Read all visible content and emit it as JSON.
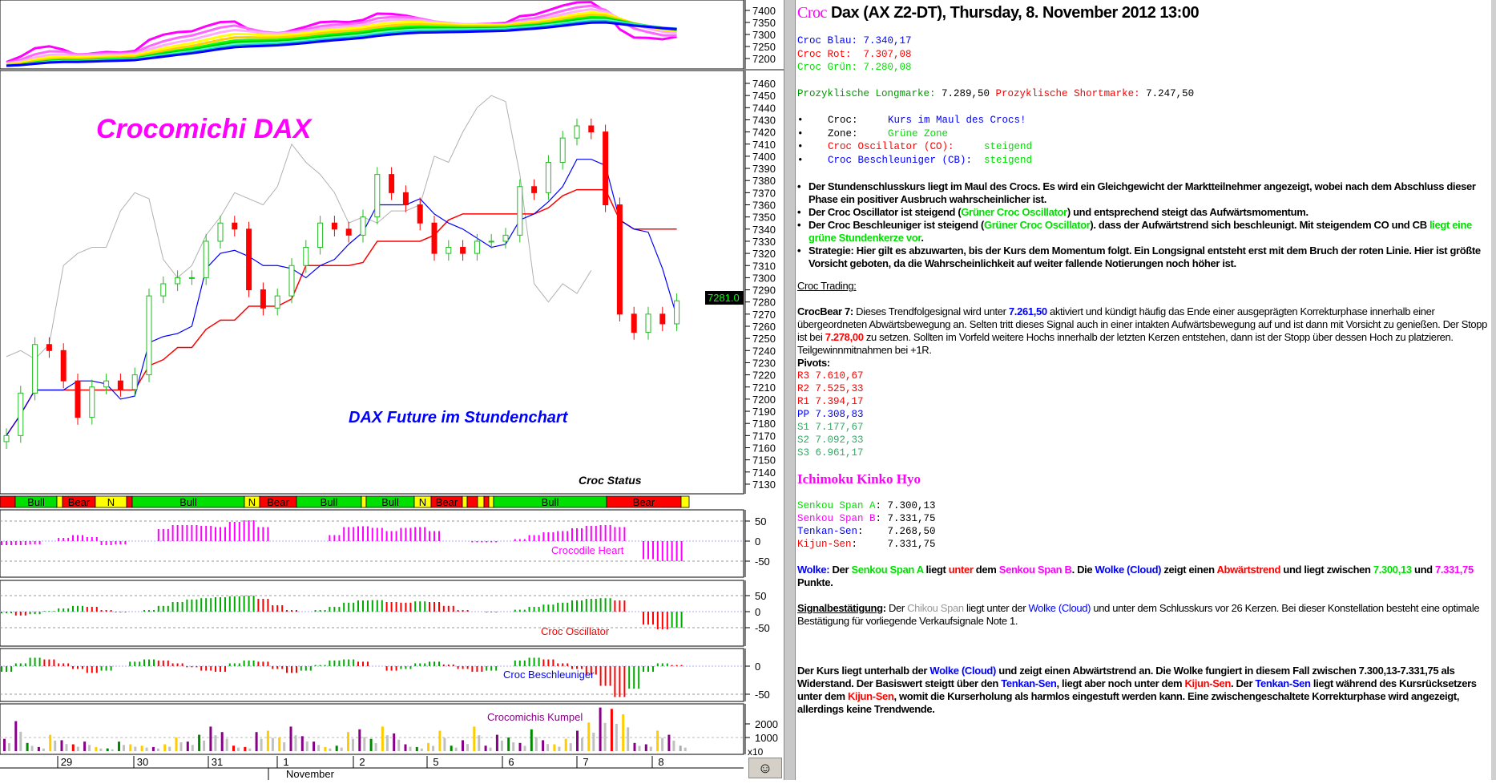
{
  "chart_data": {
    "type": "candlestick",
    "instrument": "DAX Future",
    "timeframe": "hourly",
    "annotations": [
      "Crocomichi DAX",
      "DAX Future im Stundenchart",
      "Croc Status"
    ],
    "last_price_tag": "7281.0",
    "price_axis": {
      "ticks": [
        7460,
        7450,
        7440,
        7430,
        7420,
        7410,
        7400,
        7390,
        7380,
        7370,
        7360,
        7350,
        7340,
        7330,
        7320,
        7310,
        7300,
        7290,
        7280,
        7270,
        7260,
        7250,
        7240,
        7230,
        7220,
        7210,
        7200,
        7190,
        7180,
        7170,
        7160,
        7150,
        7140,
        7130
      ],
      "range": [
        7125,
        7470
      ]
    },
    "ribbon_axis": {
      "ticks": [
        7400,
        7350,
        7300,
        7250,
        7200
      ],
      "range": [
        7190,
        7410
      ]
    },
    "closes": [
      7170,
      7205,
      7245,
      7240,
      7215,
      7185,
      7210,
      7215,
      7208,
      7220,
      7285,
      7295,
      7300,
      7300,
      7330,
      7345,
      7340,
      7290,
      7275,
      7285,
      7310,
      7325,
      7345,
      7340,
      7335,
      7350,
      7385,
      7370,
      7360,
      7345,
      7320,
      7325,
      7320,
      7330,
      7330,
      7335,
      7375,
      7370,
      7395,
      7415,
      7425,
      7420,
      7360,
      7270,
      7255,
      7270,
      7262,
      7281
    ],
    "status_bar": [
      {
        "label": "",
        "state": "bear"
      },
      {
        "label": "Bull",
        "state": "bull"
      },
      {
        "label": "",
        "state": "neutral"
      },
      {
        "label": "Bear",
        "state": "bear"
      },
      {
        "label": "N",
        "state": "neutral"
      },
      {
        "label": "",
        "state": "bear"
      },
      {
        "label": "Bull",
        "state": "bull"
      },
      {
        "label": "N",
        "state": "neutral"
      },
      {
        "label": "Bear",
        "state": "bear"
      },
      {
        "label": "Bull",
        "state": "bull"
      },
      {
        "label": "",
        "state": "neutral"
      },
      {
        "label": "Bull",
        "state": "bull"
      },
      {
        "label": "N",
        "state": "neutral"
      },
      {
        "label": "Bear",
        "state": "bear"
      },
      {
        "label": "",
        "state": "neutral"
      },
      {
        "label": "",
        "state": "bear"
      },
      {
        "label": "",
        "state": "neutral"
      },
      {
        "label": "",
        "state": "bear"
      },
      {
        "label": "",
        "state": "neutral"
      },
      {
        "label": "Bull",
        "state": "bull"
      },
      {
        "label": "Bear",
        "state": "bear"
      },
      {
        "label": "",
        "state": "neutral"
      }
    ],
    "crocodile_heart": {
      "label": "Crocodile Heart",
      "ticks": [
        50,
        0,
        -50
      ],
      "values": [
        -10,
        -10,
        -8,
        0,
        8,
        15,
        10,
        -10,
        -8,
        0,
        0,
        30,
        40,
        40,
        38,
        35,
        48,
        52,
        35,
        0,
        0,
        0,
        0,
        15,
        35,
        37,
        33,
        25,
        33,
        35,
        25,
        0,
        0,
        -3,
        -3,
        0,
        5,
        15,
        22,
        25,
        32,
        38,
        40,
        35,
        0,
        -45,
        -50,
        -50
      ]
    },
    "croc_oscillator": {
      "label": "Croc Oscillator",
      "ticks": [
        50,
        0,
        -50
      ],
      "values": [
        -5,
        -12,
        -8,
        2,
        10,
        18,
        15,
        5,
        -2,
        0,
        5,
        18,
        30,
        38,
        42,
        45,
        48,
        50,
        40,
        20,
        5,
        0,
        5,
        15,
        28,
        35,
        36,
        30,
        28,
        32,
        30,
        18,
        5,
        0,
        -2,
        0,
        6,
        15,
        22,
        28,
        35,
        40,
        42,
        35,
        0,
        -40,
        -55,
        -50
      ]
    },
    "croc_beschleuniger": {
      "label": "Croc Beschleuniger",
      "ticks": [
        0,
        -50
      ],
      "values": [
        -10,
        5,
        15,
        12,
        5,
        -5,
        -12,
        -8,
        0,
        8,
        12,
        10,
        5,
        -2,
        -8,
        -10,
        5,
        10,
        8,
        -5,
        -12,
        -8,
        2,
        10,
        12,
        8,
        0,
        -8,
        -5,
        5,
        8,
        3,
        -5,
        -10,
        -8,
        0,
        10,
        15,
        12,
        5,
        -5,
        -15,
        -35,
        -55,
        -40,
        -10,
        5,
        2
      ]
    },
    "kumpel": {
      "label": "Crocomichis Kumpel",
      "ticks": [
        2000,
        1000
      ],
      "multiplier": "x10",
      "values": [
        900,
        2200,
        600,
        300,
        1200,
        800,
        500,
        700,
        300,
        200,
        700,
        500,
        400,
        300,
        500,
        1000,
        700,
        1200,
        1800,
        1400,
        400,
        300,
        1400,
        1500,
        1000,
        1800,
        1100,
        700,
        300,
        400,
        1400,
        1600,
        900,
        1800,
        1300,
        500,
        300,
        600,
        1500,
        400,
        800,
        1800,
        400,
        1200,
        1000,
        600,
        1600,
        800,
        500,
        900,
        1500,
        2100,
        3200,
        3100,
        2700,
        600,
        500,
        1500,
        1200,
        400
      ],
      "colors": "ppgpyprpyggyypyypgpprrpyypppygypgyppgyygpyppgpgpyypypryppyp"
    },
    "x_axis": {
      "labels": [
        "29",
        "30",
        "31",
        "1",
        "2",
        "5",
        "6",
        "7",
        "8"
      ],
      "month": "November"
    }
  },
  "colors": {
    "bull": "#00e000",
    "bear": "#ff0000",
    "neutral": "#ffff00",
    "heart": "#ff00ff",
    "tenkan": "#0000ff",
    "kijun": "#ff0000",
    "chikou": "#b0b0b0",
    "price_tag_bg": "#000000",
    "price_tag_fg": "#00ff00"
  },
  "icons": {
    "smiley": "smiley-face-icon"
  },
  "panel": {
    "title_croc": "Croc",
    "title": " Dax (AX Z2-DT), Thursday, 8. November 2012 13:00",
    "croc_lines": [
      [
        {
          "t": "Croc Blau: 7.340,17",
          "c": "#0000ff"
        }
      ],
      [
        {
          "t": "Croc Rot:  7.307,08",
          "c": "#ff0000"
        }
      ],
      [
        {
          "t": "Croc Grün: 7.280,08",
          "c": "#00e000"
        }
      ]
    ],
    "prozyklisch": [
      {
        "t": "Prozyklische Longmarke: ",
        "c": "#009900"
      },
      {
        "t": "7.289,50 ",
        "c": "#000"
      },
      {
        "t": "Prozyklische Shortmarke: ",
        "c": "#ff0000"
      },
      {
        "t": "7.247,50",
        "c": "#000"
      }
    ],
    "status_items": [
      [
        {
          "t": "Croc:     ",
          "c": "#000"
        },
        {
          "t": "Kurs im Maul des Crocs!",
          "c": "#0000ff"
        }
      ],
      [
        {
          "t": "Zone:     ",
          "c": "#000"
        },
        {
          "t": "Grüne Zone",
          "c": "#00e000"
        }
      ],
      [
        {
          "t": "Croc Oscillator (CO):     ",
          "c": "#ff0000"
        },
        {
          "t": "steigend",
          "c": "#00e000"
        }
      ],
      [
        {
          "t": "Croc Beschleuniger (CB):  ",
          "c": "#0000ff"
        },
        {
          "t": "steigend",
          "c": "#00e000"
        }
      ]
    ],
    "bullets": [
      [
        {
          "t": "Der Stundenschlusskurs liegt im Maul des Crocs. Es wird ein Gleichgewicht der Marktteilnehmer angezeigt, wobei nach dem Abschluss dieser Phase ein positiver Ausbruch wahrscheinlicher ist.",
          "c": "#000"
        }
      ],
      [
        {
          "t": "Der Croc Oscillator ist steigend (",
          "c": "#000"
        },
        {
          "t": "Grüner Croc Oscillator",
          "c": "#00e000"
        },
        {
          "t": ") und entsprechend steigt das Aufwärtsmomentum.",
          "c": "#000"
        }
      ],
      [
        {
          "t": "Der Croc Beschleuniger ist steigend (",
          "c": "#000"
        },
        {
          "t": "Grüner Croc Oscillator",
          "c": "#00e000"
        },
        {
          "t": "). dass der Aufwärtstrend sich beschleunigt. Mit steigendem CO und CB ",
          "c": "#000"
        },
        {
          "t": "liegt eine grüne Stundenkerze vor",
          "c": "#00e000"
        },
        {
          "t": ".",
          "c": "#000"
        }
      ],
      [
        {
          "t": "Strategie: Hier gilt es abzuwarten, bis der Kurs dem Momentum folgt. Ein Longsignal entsteht erst mit dem Bruch der roten Linie. Hier ist größte Vorsicht geboten, da die Wahrscheinlichkeit auf weiter fallende Notierungen noch höher ist.",
          "c": "#000"
        }
      ]
    ],
    "croc_trading": "Croc Trading",
    "crocbear": [
      {
        "t": "CrocBear 7:",
        "c": "#000",
        "b": 1
      },
      {
        "t": " Dieses Trendfolgesignal wird unter ",
        "c": "#000"
      },
      {
        "t": "7.261,50",
        "c": "#0000ff",
        "b": 1
      },
      {
        "t": " aktiviert und kündigt häufig das Ende einer ausgeprägten Korrekturphase innerhalb einer übergeordneten Abwärtsbewegung an. Selten tritt dieses Signal auch in einer intakten Aufwärtsbewegung auf und ist dann mit Vorsicht zu genießen. Der Stopp ist bei ",
        "c": "#000"
      },
      {
        "t": "7.278,00",
        "c": "#ff0000",
        "b": 1
      },
      {
        "t": " zu setzen. Sollten im Vorfeld weitere Hochs innerhalb der letzten Kerzen entstehen, dann ist der Stopp über dessen Hoch zu platzieren. Teilgewinnmitnahmen bei +1R.",
        "c": "#000"
      }
    ],
    "pivots_label": "Pivots:",
    "pivots": [
      {
        "t": "R3 7.610,67",
        "c": "#ff0000"
      },
      {
        "t": "R2 7.525,33",
        "c": "#ff0000"
      },
      {
        "t": "R1 7.394,17",
        "c": "#ff0000"
      },
      {
        "t": "PP 7.308,83",
        "c": "#0000ff"
      },
      {
        "t": "S1 7.177,67",
        "c": "#33aa66"
      },
      {
        "t": "S2 7.092,33",
        "c": "#33aa66"
      },
      {
        "t": "S3 6.961,17",
        "c": "#33aa66"
      }
    ],
    "ichimoku_title": "Ichimoku Kinko Hyo",
    "ichimoku": [
      [
        {
          "t": "Senkou Span A",
          "c": "#00e000"
        },
        {
          "t": ": 7.300,13",
          "c": "#000"
        }
      ],
      [
        {
          "t": "Senkou Span B",
          "c": "#ff00ff"
        },
        {
          "t": ": 7.331,75",
          "c": "#000"
        }
      ],
      [
        {
          "t": "Tenkan-Sen",
          "c": "#0000ff"
        },
        {
          "t": ":    7.268,50",
          "c": "#000"
        }
      ],
      [
        {
          "t": "Kijun-Sen",
          "c": "#ff0000"
        },
        {
          "t": ":     7.331,75",
          "c": "#000"
        }
      ]
    ],
    "wolke": [
      {
        "t": "Wolke:",
        "c": "#0000ff"
      },
      {
        "t": " Der ",
        "c": "#000"
      },
      {
        "t": "Senkou Span A",
        "c": "#00e000"
      },
      {
        "t": " liegt ",
        "c": "#000"
      },
      {
        "t": "unter",
        "c": "#ff0000"
      },
      {
        "t": " dem ",
        "c": "#000"
      },
      {
        "t": "Senkou Span B",
        "c": "#ff00ff"
      },
      {
        "t": ". Die ",
        "c": "#000"
      },
      {
        "t": "Wolke (Cloud)",
        "c": "#0000ff"
      },
      {
        "t": " zeigt einen ",
        "c": "#000"
      },
      {
        "t": "Abwärtstrend",
        "c": "#ff0000"
      },
      {
        "t": " und liegt zwischen ",
        "c": "#000"
      },
      {
        "t": "7.300,13",
        "c": "#00e000"
      },
      {
        "t": " und ",
        "c": "#000"
      },
      {
        "t": "7.331,75",
        "c": "#ff00ff"
      },
      {
        "t": " Punkte.",
        "c": "#000"
      }
    ],
    "signal": [
      {
        "t": "Signalbestätigung",
        "c": "#000",
        "b": 1,
        "u": 1
      },
      {
        "t": ":",
        "c": "#000",
        "b": 1
      },
      {
        "t": " Der ",
        "c": "#000"
      },
      {
        "t": "Chikou Span",
        "c": "#999999"
      },
      {
        "t": " liegt unter der ",
        "c": "#000"
      },
      {
        "t": "Wolke (Cloud)",
        "c": "#0000ff"
      },
      {
        "t": " und unter dem Schlusskurs vor 26 Kerzen. Bei dieser Konstellation besteht eine optimale Bestätigung für vorliegende Verkaufsignale Note 1.",
        "c": "#000"
      }
    ],
    "kurs": [
      {
        "t": "Der Kurs liegt unterhalb der ",
        "c": "#000"
      },
      {
        "t": "Wolke (Cloud)",
        "c": "#0000ff"
      },
      {
        "t": " und zeigt einen Abwärtstrend an. Die Wolke fungiert in diesem Fall zwischen 7.300,13-7.331,75 als Widerstand. Der Basiswert steigtt über den ",
        "c": "#000"
      },
      {
        "t": "Tenkan-Sen",
        "c": "#0000ff"
      },
      {
        "t": ", liegt aber noch unter dem ",
        "c": "#000"
      },
      {
        "t": "Kijun-Sen",
        "c": "#ff0000"
      },
      {
        "t": ". Der ",
        "c": "#000"
      },
      {
        "t": "Tenkan-Sen",
        "c": "#0000ff"
      },
      {
        "t": " liegt während des Kursrücksetzers unter dem ",
        "c": "#000"
      },
      {
        "t": "Kijun-Sen",
        "c": "#ff0000"
      },
      {
        "t": ", womit die Kurserholung als harmlos eingestuft werden kann. Eine zwischengeschaltete Korrekturphase wird angezeigt, allerdings keine Trendwende.",
        "c": "#000"
      }
    ]
  }
}
